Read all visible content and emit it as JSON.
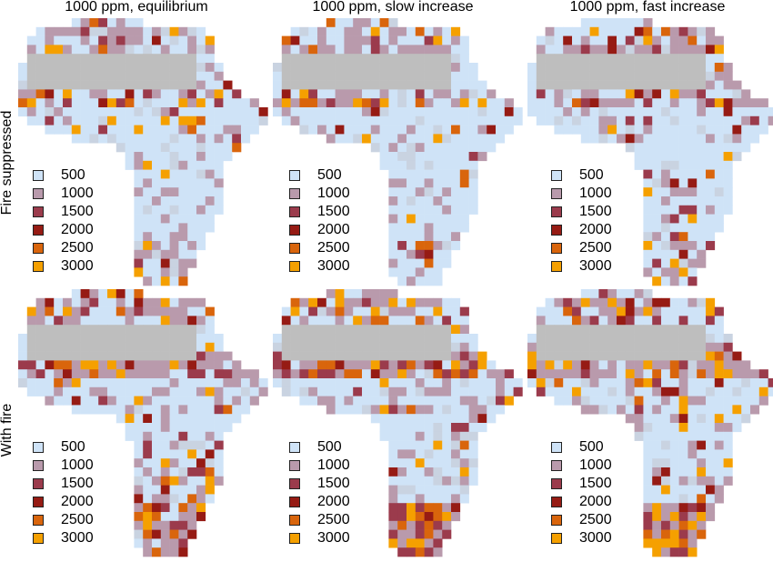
{
  "column_titles": [
    "1000 ppm, equilibrium",
    "1000 ppm, slow increase",
    "1000 ppm, fast increase"
  ],
  "row_titles": [
    "Fire suppressed",
    "With fire"
  ],
  "legend": {
    "items": [
      {
        "label": "500",
        "color": "#cfe3f7"
      },
      {
        "label": "1000",
        "color": "#b99aac"
      },
      {
        "label": "1500",
        "color": "#9b3b4c"
      },
      {
        "label": "2000",
        "color": "#961b14"
      },
      {
        "label": "2500",
        "color": "#d9650c"
      },
      {
        "label": "3000",
        "color": "#f5a000"
      }
    ]
  },
  "colors": {
    "no_data": "#bebebe",
    "cell_500": "#cfe3f7",
    "cell_1000": "#b99aac",
    "cell_1500": "#9b3b4c",
    "cell_2000": "#961b14",
    "cell_2500": "#d9650c",
    "cell_3000": "#f5a000"
  }
}
